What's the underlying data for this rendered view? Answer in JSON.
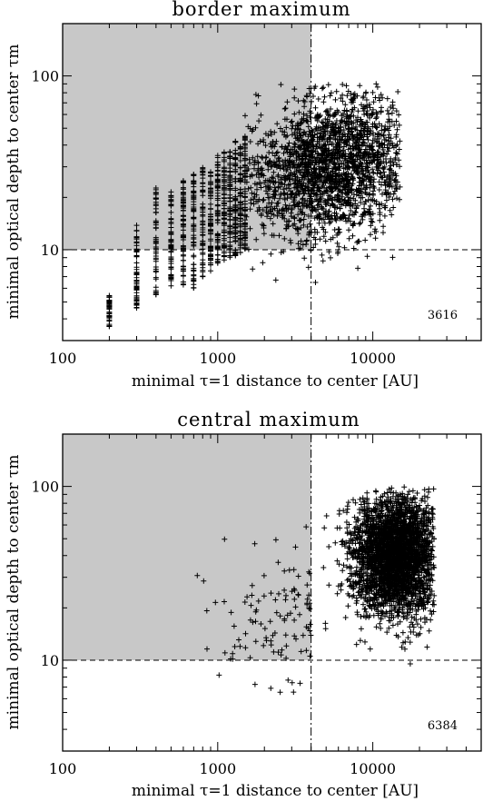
{
  "chart_data": [
    {
      "type": "scatter",
      "title": "border maximum",
      "xlabel": "minimal τ=1 distance to center [AU]",
      "ylabel": "minimal optical depth to center τm",
      "x_scale": "log",
      "y_scale": "log",
      "xlim": [
        100,
        50000
      ],
      "ylim": [
        3,
        200
      ],
      "x_ticks": [
        "100",
        "1000",
        "10000"
      ],
      "y_ticks": [
        "10",
        "100"
      ],
      "x_tick_values": [
        100,
        1000,
        10000
      ],
      "y_tick_values": [
        10,
        100
      ],
      "threshold_x": 4000,
      "threshold_y": 10,
      "shaded_region": {
        "x": [
          100,
          4000
        ],
        "y": [
          10,
          200
        ]
      },
      "count_label": "3616",
      "n_points": 3616,
      "marker": "plus",
      "distribution": {
        "x_columns": [
          200,
          300,
          400,
          500,
          600,
          700,
          800,
          900,
          1000,
          1100,
          1200,
          1300,
          1400,
          1500
        ],
        "y_column_ranges": [
          [
            3.6,
            5.5
          ],
          [
            4.5,
            14
          ],
          [
            5.5,
            23
          ],
          [
            6,
            22
          ],
          [
            6,
            25
          ],
          [
            6,
            28
          ],
          [
            7,
            30
          ],
          [
            7.5,
            32
          ],
          [
            8,
            35
          ],
          [
            8.5,
            38
          ],
          [
            9,
            40
          ],
          [
            9,
            42
          ],
          [
            9.5,
            42
          ],
          [
            10,
            45
          ]
        ],
        "cloud_x_range": [
          1500,
          15000
        ],
        "cloud_y_range": [
          6,
          90
        ],
        "cloud_center": [
          5500,
          30
        ]
      }
    },
    {
      "type": "scatter",
      "title": "central maximum",
      "xlabel": "minimal τ=1 distance to center [AU]",
      "ylabel": "minimal optical depth to center τm",
      "x_scale": "log",
      "y_scale": "log",
      "xlim": [
        100,
        50000
      ],
      "ylim": [
        3,
        200
      ],
      "x_ticks": [
        "100",
        "1000",
        "10000"
      ],
      "y_ticks": [
        "10",
        "100"
      ],
      "x_tick_values": [
        100,
        1000,
        10000
      ],
      "y_tick_values": [
        10,
        100
      ],
      "threshold_x": 4000,
      "threshold_y": 10,
      "shaded_region": {
        "x": [
          100,
          4000
        ],
        "y": [
          10,
          200
        ]
      },
      "count_label": "6384",
      "n_points": 6384,
      "marker": "plus",
      "distribution": {
        "cloud_x_range": [
          4000,
          25000
        ],
        "cloud_y_range": [
          7,
          100
        ],
        "cloud_center": [
          14000,
          40
        ],
        "sparse_x_range": [
          500,
          4000
        ],
        "sparse_y_range": [
          5,
          60
        ]
      }
    }
  ]
}
